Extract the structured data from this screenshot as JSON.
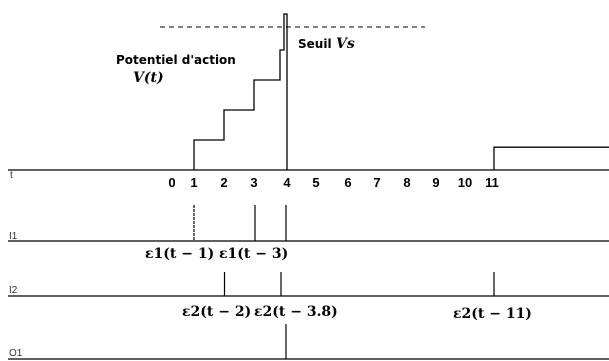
{
  "title": "Potentiel d'action",
  "title_var": "V(t)",
  "threshold_label": "Seuil",
  "threshold_var": "Vs",
  "row_labels": {
    "t": "t",
    "i1": "I1",
    "i2": "I2",
    "o1": "O1"
  },
  "ticks": [
    "0",
    "1",
    "2",
    "3",
    "4",
    "5",
    "6",
    "7",
    "8",
    "9",
    "10",
    "11"
  ],
  "i1_spikes": [
    1,
    3,
    4
  ],
  "i2_spikes": [
    2,
    3.8,
    11
  ],
  "o1_spikes": [
    4
  ],
  "i1_labels": [
    "ε1(t − 1)",
    "ε1(t − 3)"
  ],
  "i2_labels": [
    "ε2(t − 2)",
    "ε2(t − 3.8)",
    "ε2(t − 11)"
  ],
  "potential_steps": [
    {
      "t": 1,
      "level": 1
    },
    {
      "t": 2,
      "level": 2
    },
    {
      "t": 3,
      "level": 3
    },
    {
      "t": 3.8,
      "level": 4
    }
  ],
  "post_spike_level": {
    "t": 11,
    "level": 0.6
  }
}
